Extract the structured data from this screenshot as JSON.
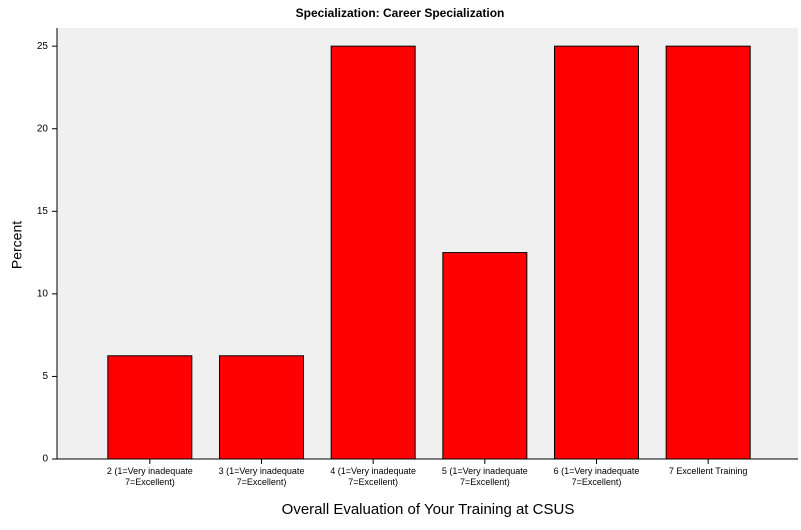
{
  "chart_data": {
    "type": "bar",
    "title": "Specialization: Career Specialization",
    "x_label": "Overall Evaluation of Your Training at CSUS",
    "y_label": "Percent",
    "categories": [
      "2 (1=Very inadequate\n7=Excellent)",
      "3 (1=Very inadequate\n7=Excellent)",
      "4 (1=Very inadequate\n7=Excellent)",
      "5 (1=Very inadequate\n7=Excellent)",
      "6 (1=Very inadequate\n7=Excellent)",
      "7 Excellent Training"
    ],
    "values": [
      6.25,
      6.25,
      25,
      12.5,
      25,
      25
    ],
    "color": "#ff0000",
    "ylim": [
      0,
      26.1
    ],
    "yticks": [
      0,
      5,
      10,
      15,
      20,
      25
    ],
    "grid": false
  }
}
